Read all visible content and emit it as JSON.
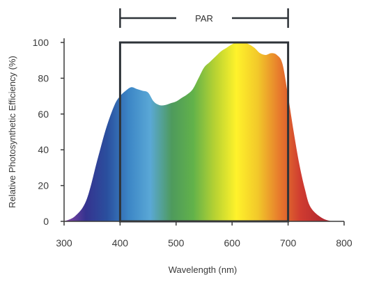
{
  "chart_data": {
    "type": "area",
    "xlabel": "Wavelength (nm)",
    "ylabel": "Relative Photosynthetic Efficiency (%)",
    "xlim": [
      300,
      800
    ],
    "ylim": [
      0,
      100
    ],
    "x_ticks": [
      300,
      400,
      500,
      600,
      700,
      800
    ],
    "y_ticks": [
      0,
      20,
      40,
      60,
      80,
      100
    ],
    "grid": false,
    "annotations": [
      {
        "label": "PAR",
        "x_start": 400,
        "x_end": 700
      }
    ],
    "fill": "visible-spectrum-gradient",
    "series": [
      {
        "x": [
          300,
          320,
          340,
          360,
          375,
          390,
          400,
          410,
          420,
          430,
          440,
          450,
          460,
          470,
          480,
          490,
          500,
          510,
          520,
          530,
          540,
          550,
          560,
          570,
          580,
          590,
          600,
          610,
          620,
          630,
          640,
          650,
          660,
          670,
          680,
          690,
          700,
          710,
          720,
          730,
          740,
          760,
          780,
          800
        ],
        "values": [
          0,
          3,
          12,
          35,
          52,
          65,
          70,
          73,
          75,
          74,
          73,
          72,
          67,
          65,
          65,
          66,
          67,
          69,
          71,
          74,
          80,
          86,
          89,
          92,
          95,
          97,
          99,
          100,
          100,
          99,
          97,
          94,
          93,
          94,
          93,
          88,
          70,
          50,
          32,
          18,
          8,
          2,
          0,
          0
        ]
      }
    ]
  },
  "colors": {
    "axis": "#3a3a3a",
    "par_box": "#2e3338",
    "spectrum_stops": [
      "#8a45a6",
      "#35338f",
      "#2a4f9e",
      "#3c86c6",
      "#5aa8d6",
      "#4e9a5c",
      "#62b24a",
      "#b7d232",
      "#fff22b",
      "#f2c82a",
      "#e77a2c",
      "#cf3b30",
      "#b52a30",
      "#a8262c"
    ]
  }
}
